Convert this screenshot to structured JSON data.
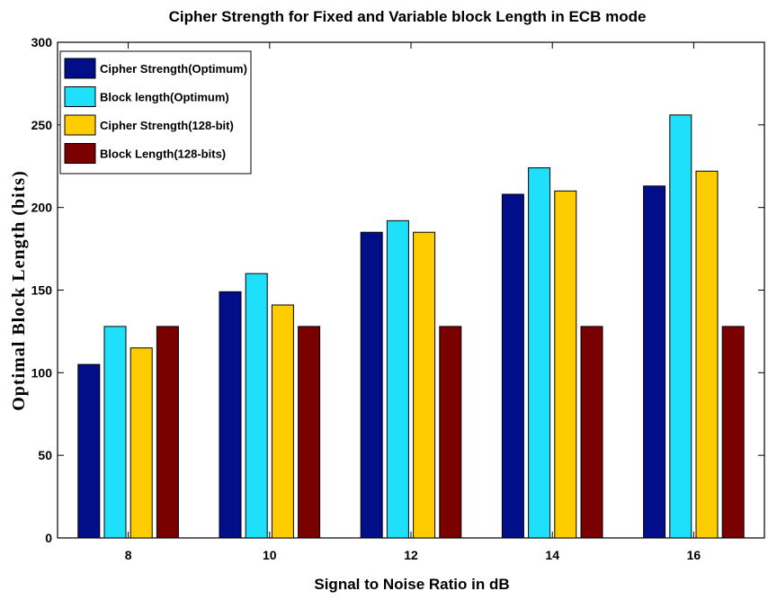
{
  "chart_data": {
    "type": "bar",
    "title": "Cipher Strength for Fixed and Variable block Length in ECB mode",
    "xlabel": "Signal to Noise Ratio in dB",
    "ylabel": "Optimal Block Length (bits)",
    "categories": [
      "8",
      "10",
      "12",
      "14",
      "16"
    ],
    "ylim": [
      0,
      300
    ],
    "yticks": [
      0,
      50,
      100,
      150,
      200,
      250,
      300
    ],
    "grid": false,
    "legend_position": "top-left",
    "series": [
      {
        "name": "Cipher Strength(Optimum)",
        "color": "#000e8a",
        "values": [
          105,
          149,
          185,
          208,
          213
        ]
      },
      {
        "name": "Block length(Optimum)",
        "color": "#1ee0fa",
        "values": [
          128,
          160,
          192,
          224,
          256
        ]
      },
      {
        "name": "Cipher Strength(128-bit)",
        "color": "#ffcc00",
        "values": [
          115,
          141,
          185,
          210,
          222
        ]
      },
      {
        "name": "Block Length(128-bits)",
        "color": "#7a0000",
        "values": [
          128,
          128,
          128,
          128,
          128
        ]
      }
    ]
  }
}
